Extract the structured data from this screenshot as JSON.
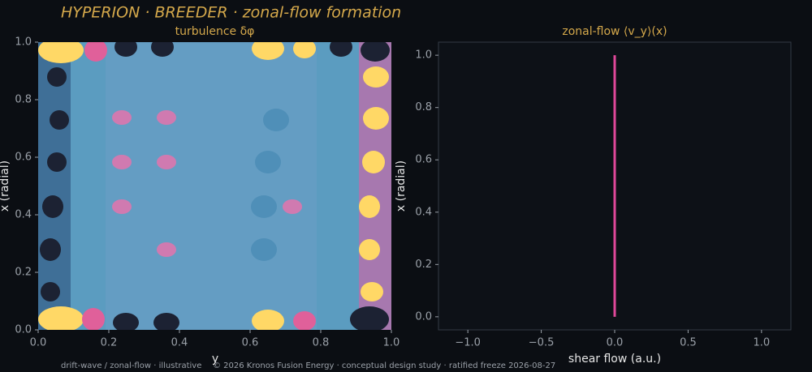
{
  "title": "HYPERION · BREEDER  ·  zonal-flow formation",
  "footer": [
    "drift-wave / zonal-flow · illustrative",
    "© 2026 Kronos Fusion Energy · conceptual design study · ratified freeze 2026-08-27"
  ],
  "chart_data": [
    {
      "type": "contour",
      "title": "turbulence δφ",
      "xlabel": "y",
      "ylabel": "x (radial)",
      "xlim": [
        0,
        1
      ],
      "ylim": [
        0,
        1
      ],
      "xticks": [
        {
          "value": 0,
          "label": "0.0"
        },
        {
          "value": 0.2,
          "label": "0.2"
        },
        {
          "value": 0.4,
          "label": "0.4"
        },
        {
          "value": 0.6,
          "label": "0.6"
        },
        {
          "value": 0.8,
          "label": "0.8"
        },
        {
          "value": 1,
          "label": "1.0"
        }
      ],
      "yticks": [
        {
          "value": 0,
          "label": "0.0"
        },
        {
          "value": 0.2,
          "label": "0.2"
        },
        {
          "value": 0.4,
          "label": "0.4"
        },
        {
          "value": 0.6,
          "label": "0.6"
        },
        {
          "value": 0.8,
          "label": "0.8"
        },
        {
          "value": 1,
          "label": "1.0"
        }
      ]
    },
    {
      "type": "line",
      "title": "zonal-flow ⟨v_y⟩(x)",
      "xlabel": "shear flow (a.u.)",
      "ylabel": "x (radial)",
      "x": [
        0,
        0
      ],
      "values": [
        0,
        1
      ],
      "color": "#e0489a",
      "xlim": [
        -1.2,
        1.2
      ],
      "ylim": [
        -0.05,
        1.05
      ],
      "xticks": [
        {
          "value": -1,
          "label": "−1.0"
        },
        {
          "value": -0.5,
          "label": "−0.5"
        },
        {
          "value": 0,
          "label": "0.0"
        },
        {
          "value": 0.5,
          "label": "0.5"
        },
        {
          "value": 1,
          "label": "1.0"
        }
      ],
      "yticks": [
        {
          "value": 0,
          "label": "0.0"
        },
        {
          "value": 0.2,
          "label": "0.2"
        },
        {
          "value": 0.4,
          "label": "0.4"
        },
        {
          "value": 0.6,
          "label": "0.6"
        },
        {
          "value": 0.8,
          "label": "0.8"
        },
        {
          "value": 1,
          "label": "1.0"
        }
      ]
    }
  ]
}
